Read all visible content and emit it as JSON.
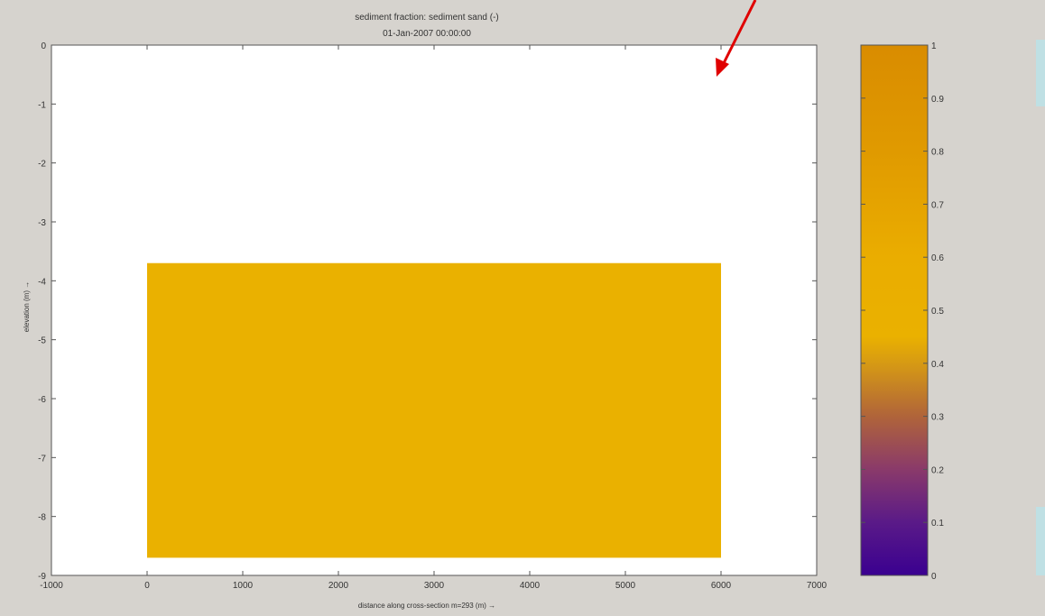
{
  "chart_data": {
    "type": "heatmap",
    "title": "sediment fraction: sediment sand (-)",
    "subtitle": "01-Jan-2007 00:00:00",
    "xlabel": "distance along cross-section m=293 (m) →",
    "ylabel": "elevation (m) →",
    "xlim": [
      -1000,
      7000
    ],
    "ylim": [
      -9,
      0
    ],
    "x_ticks": [
      "-1000",
      "0",
      "1000",
      "2000",
      "3000",
      "4000",
      "5000",
      "6000",
      "7000"
    ],
    "y_ticks": [
      "0",
      "-1",
      "-2",
      "-3",
      "-4",
      "-5",
      "-6",
      "-7",
      "-8",
      "-9"
    ],
    "grid": false,
    "cells": [
      {
        "x_range": [
          0,
          6000
        ],
        "y_range": [
          -8.7,
          -3.7
        ],
        "value": 0.5,
        "color": "#eab100"
      }
    ],
    "colorbar": {
      "range": [
        0,
        1
      ],
      "ticks": [
        "0",
        "0.1",
        "0.2",
        "0.3",
        "0.4",
        "0.5",
        "0.6",
        "0.7",
        "0.8",
        "0.9",
        "1"
      ],
      "stops": [
        {
          "v": 0.0,
          "color": "#3a0090"
        },
        {
          "v": 0.1,
          "color": "#5a1a88"
        },
        {
          "v": 0.2,
          "color": "#8a3a6a"
        },
        {
          "v": 0.3,
          "color": "#b0643a"
        },
        {
          "v": 0.4,
          "color": "#d69a14"
        },
        {
          "v": 0.45,
          "color": "#eab100"
        },
        {
          "v": 0.6,
          "color": "#eaad00"
        },
        {
          "v": 0.8,
          "color": "#e09a00"
        },
        {
          "v": 1.0,
          "color": "#d98c00"
        }
      ]
    }
  },
  "colors": {
    "background": "#d6d3ce",
    "plot_area": "#ffffff",
    "annotation_arrow": "#e00000",
    "side_panel": "#bfe0e4"
  },
  "annotation": {
    "type": "arrow",
    "color": "#e00000"
  }
}
